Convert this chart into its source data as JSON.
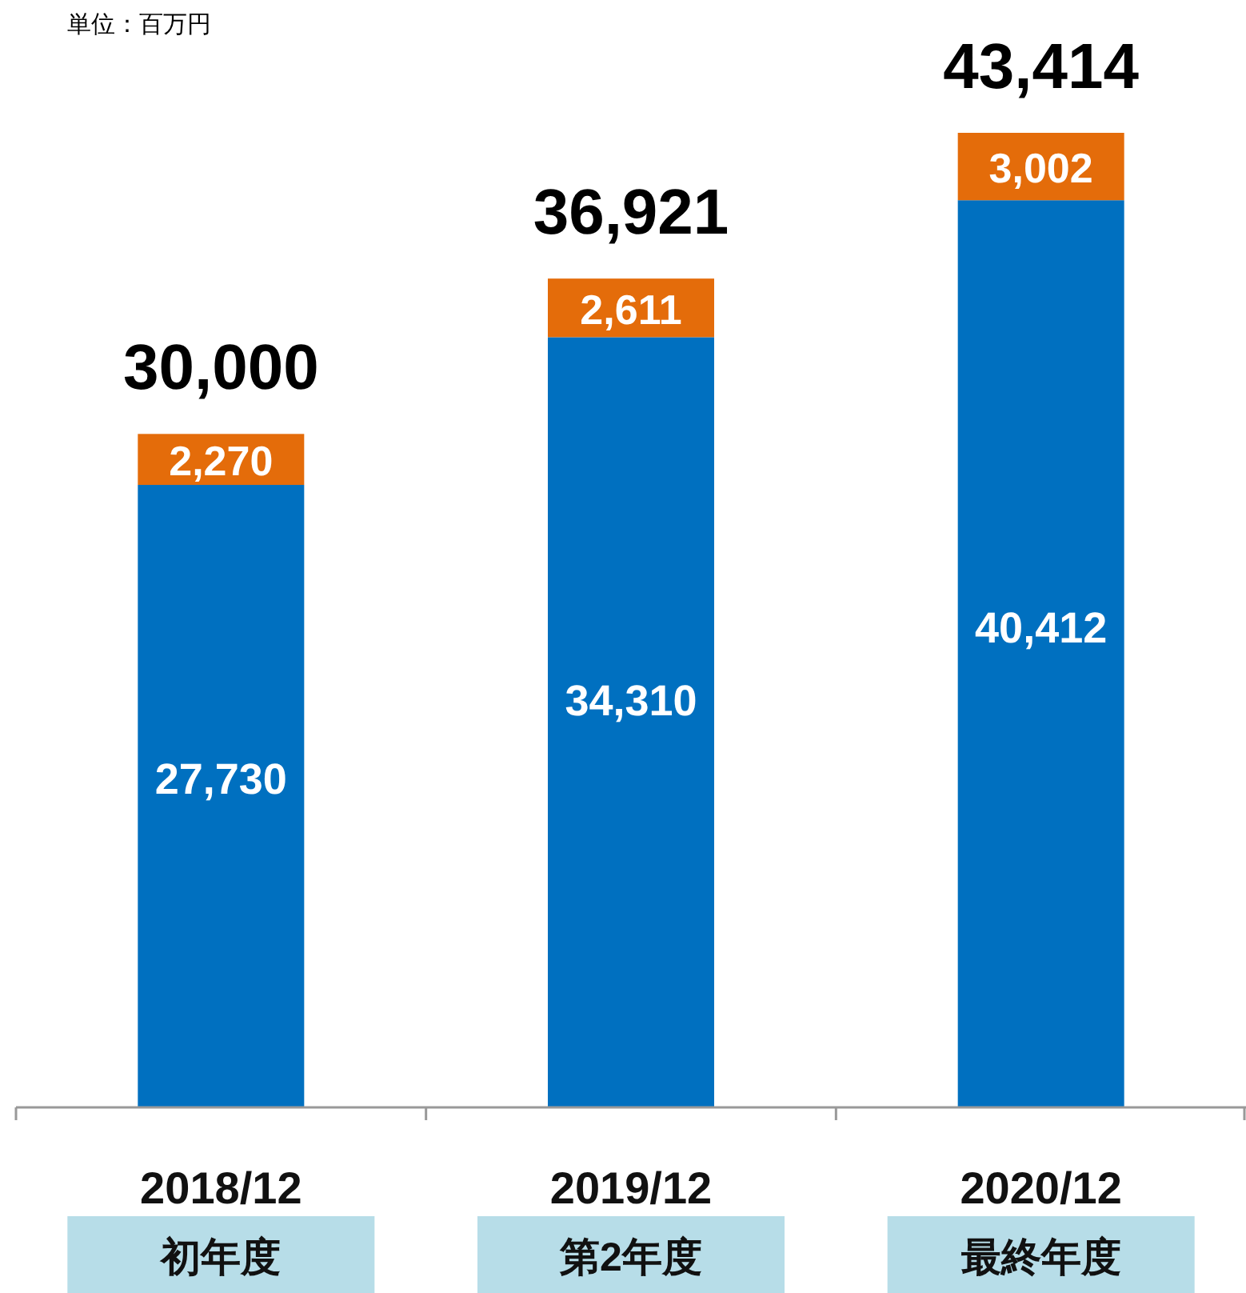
{
  "chart_data": {
    "type": "bar",
    "stacked": true,
    "categories": [
      "2018/12\n初年度",
      "2019/12\n第2年度",
      "2020/12\n最終年度"
    ],
    "series": [
      {
        "color": "#0070c0",
        "values": [
          27730,
          34310,
          40412
        ],
        "value_labels": [
          "27,730",
          "34,310",
          "40,412"
        ]
      },
      {
        "color": "#e46c0a",
        "values": [
          2270,
          2611,
          3002
        ],
        "value_labels": [
          "2,270",
          "2,611",
          "3,002"
        ]
      }
    ],
    "totals": [
      "30,000",
      "36,921",
      "43,414"
    ],
    "annotations": [
      "単位：百万円"
    ]
  }
}
